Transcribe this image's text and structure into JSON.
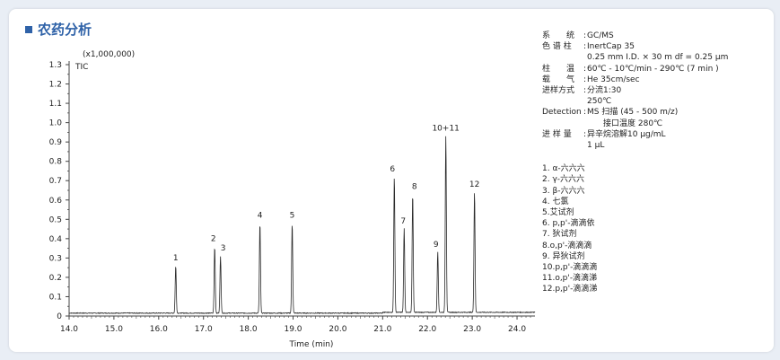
{
  "header": {
    "title": "农药分析"
  },
  "conditions": [
    {
      "key": "系　　统",
      "value": "GC/MS"
    },
    {
      "key": "色 谱 柱",
      "value": "InertCap 35"
    },
    {
      "key": "",
      "value": "0.25 mm I.D. × 30 m df = 0.25 μm"
    },
    {
      "key": "柱　　温",
      "value": "60℃ - 10℃/min - 290℃ (7 min )"
    },
    {
      "key": "载　　气",
      "value": "He 35cm/sec"
    },
    {
      "key": "进样方式",
      "value": "分流1:30"
    },
    {
      "key": "",
      "value": "250℃"
    },
    {
      "key": "Detection",
      "value": "MS 扫描 (45 - 500 m/z)"
    },
    {
      "key": "",
      "value": "　　接口温度 280℃"
    },
    {
      "key": "进 样 量",
      "value": "异辛烷溶解10 μg/mL"
    },
    {
      "key": "",
      "value": "1 μL"
    }
  ],
  "legend": [
    "1. α-六六六",
    "2. γ-六六六",
    "3. β-六六六",
    "4. 七氯",
    "5.艾试剂",
    "6. p,p'-滴滴依",
    "7. 狄试剂",
    "8.o,p'-滴滴滴",
    "9. 异狄试剂",
    "10.p,p'-滴滴滴",
    "11.o,p'-滴滴涕",
    "12.p,p'-滴滴涕"
  ],
  "chart_data": {
    "type": "line",
    "title": "",
    "xlabel": "Time (min)",
    "ylabel": "TIC",
    "y_multiplier": "(x1,000,000)",
    "xlim": [
      14.0,
      24.4
    ],
    "ylim": [
      0,
      1.3
    ],
    "x_ticks": [
      "14.0",
      "15.0",
      "16.0",
      "17.0",
      "18.0",
      "19.0",
      "20.0",
      "21.0",
      "22.0",
      "23.0",
      "24.0"
    ],
    "y_ticks": [
      "0",
      "0.1",
      "0.2",
      "0.3",
      "0.4",
      "0.5",
      "0.6",
      "0.7",
      "0.8",
      "0.9",
      "1.0",
      "1.1",
      "1.2",
      "1.3"
    ],
    "baseline": 0.015,
    "peaks": [
      {
        "label": "1",
        "rt": 16.38,
        "height": 0.26
      },
      {
        "label": "2",
        "rt": 17.25,
        "height": 0.36
      },
      {
        "label": "3",
        "rt": 17.38,
        "height": 0.31
      },
      {
        "label": "4",
        "rt": 18.26,
        "height": 0.48
      },
      {
        "label": "5",
        "rt": 18.98,
        "height": 0.48
      },
      {
        "label": "6",
        "rt": 21.26,
        "height": 0.72
      },
      {
        "label": "7",
        "rt": 21.48,
        "height": 0.45
      },
      {
        "label": "8",
        "rt": 21.67,
        "height": 0.63
      },
      {
        "label": "9",
        "rt": 22.23,
        "height": 0.33
      },
      {
        "label": "10+11",
        "rt": 22.41,
        "height": 0.93
      },
      {
        "label": "12",
        "rt": 23.05,
        "height": 0.64
      }
    ]
  }
}
